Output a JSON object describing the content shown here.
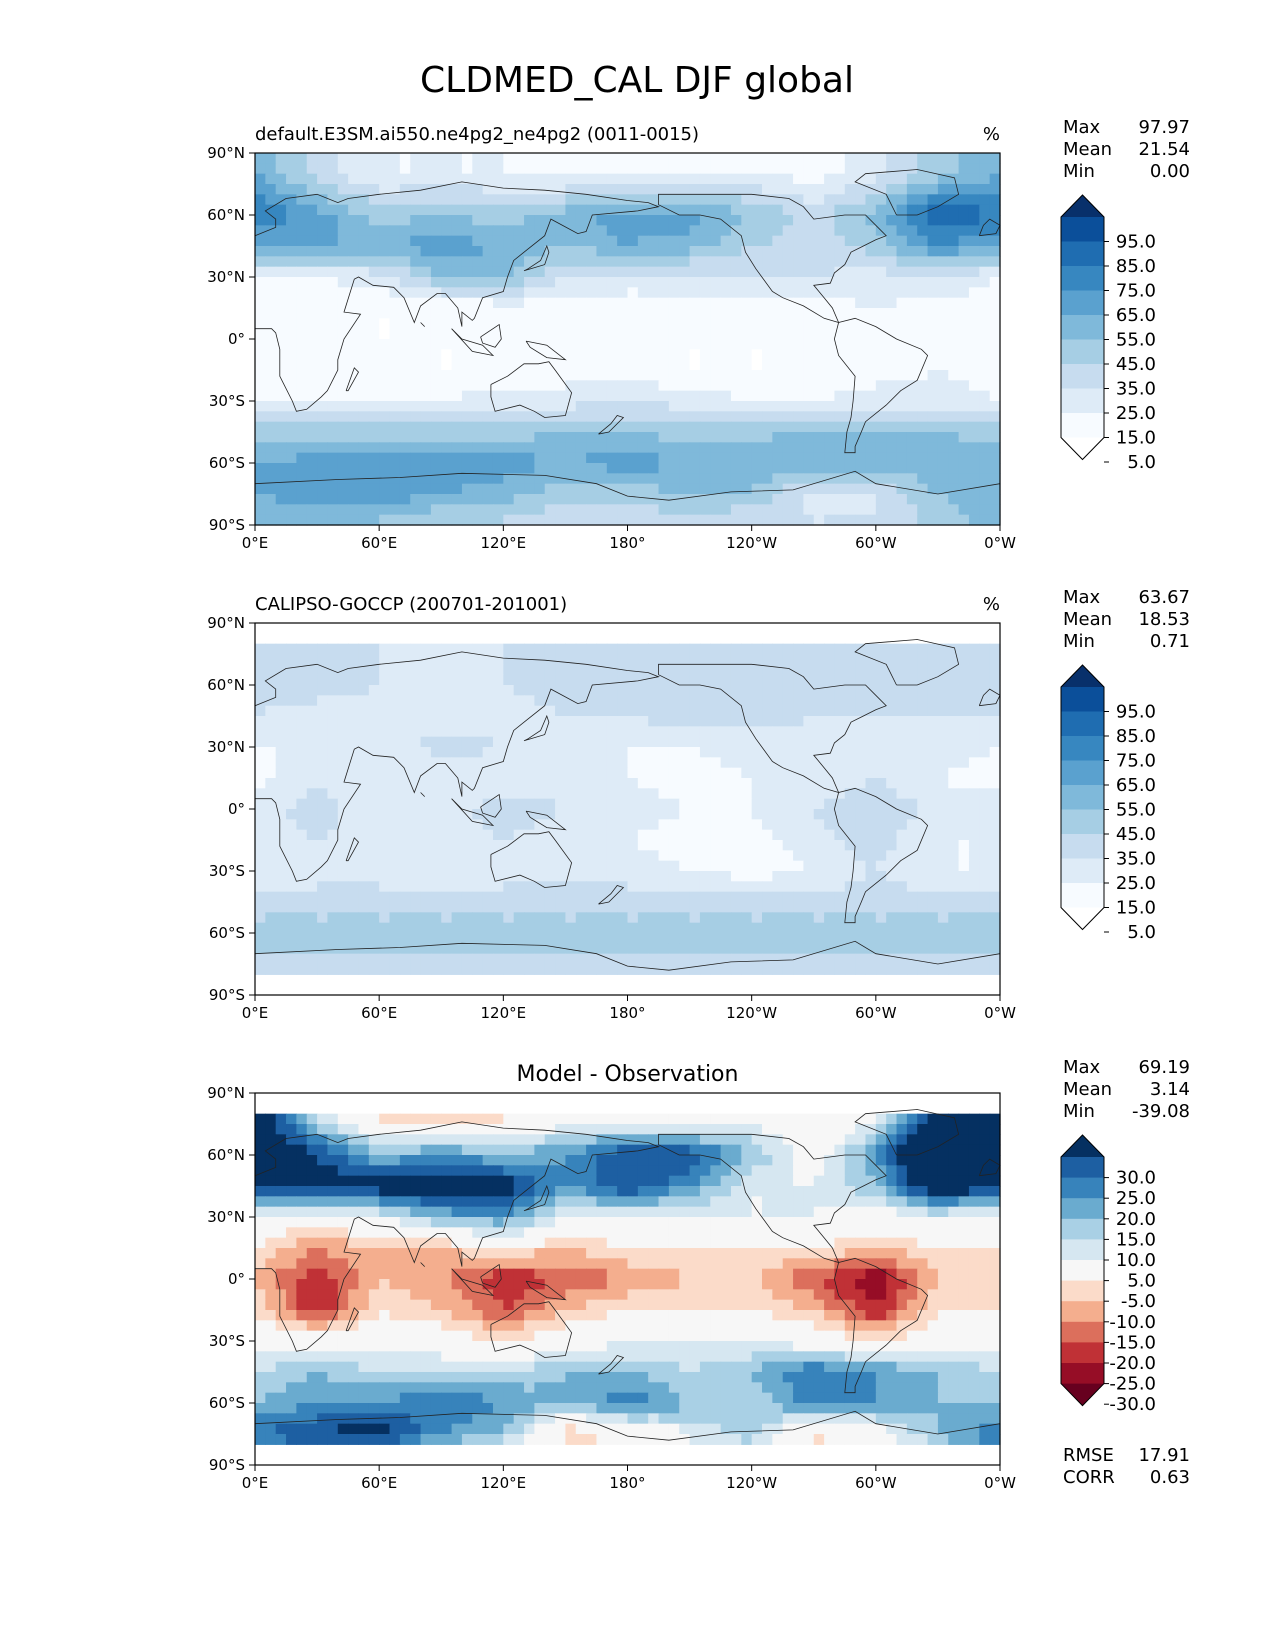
{
  "figure": {
    "title": "CLDMED_CAL DJF global"
  },
  "chart_data": [
    {
      "type": "heatmap",
      "title_left": "default.E3SM.ai550.ne4pg2_ne4pg2 (0011-0015)",
      "title_center": "",
      "units": "%",
      "stats": [
        {
          "label": "Max",
          "value": "97.97"
        },
        {
          "label": "Mean",
          "value": "21.54"
        },
        {
          "label": "Min",
          "value": "0.00"
        }
      ],
      "colorbar": {
        "ticks": [
          "95.0",
          "85.0",
          "75.0",
          "65.0",
          "55.0",
          "45.0",
          "35.0",
          "25.0",
          "15.0",
          "5.0"
        ],
        "colors": [
          "#08306b",
          "#0b4f9a",
          "#1f6db1",
          "#3787c0",
          "#5aa1cf",
          "#7fb9da",
          "#a6cee4",
          "#c7dcef",
          "#deebf7",
          "#f7fbff",
          "#ffffff"
        ]
      },
      "xlabels": [
        "0°E",
        "60°E",
        "120°E",
        "180°",
        "120°W",
        "60°W",
        "0°W"
      ],
      "ylabels": [
        "90°N",
        "60°N",
        "30°N",
        "0°",
        "30°S",
        "60°S",
        "90°S"
      ],
      "field": {
        "lons": [
          0,
          30,
          60,
          90,
          120,
          150,
          180,
          210,
          240,
          270,
          300,
          330,
          360
        ],
        "lats": [
          80,
          60,
          45,
          30,
          15,
          0,
          -15,
          -30,
          -45,
          -60,
          -75,
          -85
        ],
        "values": [
          [
            55,
            30,
            15,
            15,
            15,
            10,
            10,
            10,
            15,
            10,
            20,
            40,
            55
          ],
          [
            75,
            60,
            40,
            45,
            40,
            50,
            60,
            60,
            45,
            30,
            50,
            85,
            75
          ],
          [
            55,
            55,
            55,
            60,
            55,
            45,
            55,
            50,
            35,
            30,
            40,
            65,
            55
          ],
          [
            15,
            15,
            20,
            45,
            45,
            25,
            20,
            20,
            25,
            25,
            20,
            25,
            15
          ],
          [
            10,
            5,
            5,
            5,
            10,
            10,
            10,
            10,
            10,
            10,
            15,
            10,
            10
          ],
          [
            10,
            10,
            5,
            5,
            5,
            5,
            5,
            5,
            5,
            5,
            10,
            10,
            10
          ],
          [
            10,
            15,
            10,
            5,
            5,
            10,
            10,
            5,
            5,
            5,
            10,
            15,
            10
          ],
          [
            15,
            15,
            15,
            15,
            20,
            20,
            25,
            20,
            15,
            15,
            20,
            20,
            15
          ],
          [
            40,
            40,
            40,
            40,
            40,
            45,
            45,
            40,
            40,
            50,
            50,
            45,
            40
          ],
          [
            55,
            60,
            60,
            65,
            60,
            55,
            60,
            55,
            50,
            55,
            50,
            55,
            55
          ],
          [
            55,
            60,
            65,
            55,
            50,
            40,
            40,
            45,
            45,
            20,
            25,
            45,
            55
          ],
          [
            50,
            50,
            45,
            40,
            35,
            30,
            30,
            35,
            30,
            25,
            25,
            40,
            50
          ]
        ]
      }
    },
    {
      "type": "heatmap",
      "title_left": "CALIPSO-GOCCP (200701-201001)",
      "title_center": "",
      "units": "%",
      "stats": [
        {
          "label": "Max",
          "value": "63.67"
        },
        {
          "label": "Mean",
          "value": "18.53"
        },
        {
          "label": "Min",
          "value": "0.71"
        }
      ],
      "colorbar": {
        "ticks": [
          "95.0",
          "85.0",
          "75.0",
          "65.0",
          "55.0",
          "45.0",
          "35.0",
          "25.0",
          "15.0",
          "5.0"
        ],
        "colors": [
          "#08306b",
          "#0b4f9a",
          "#1f6db1",
          "#3787c0",
          "#5aa1cf",
          "#7fb9da",
          "#a6cee4",
          "#c7dcef",
          "#deebf7",
          "#f7fbff",
          "#ffffff"
        ]
      },
      "xlabels": [
        "0°E",
        "60°E",
        "120°E",
        "180°",
        "120°W",
        "60°W",
        "0°W"
      ],
      "ylabels": [
        "90°N",
        "60°N",
        "30°N",
        "0°",
        "30°S",
        "60°S",
        "90°S"
      ],
      "lat_mask": [
        -82,
        82
      ],
      "field": {
        "lons": [
          0,
          30,
          60,
          90,
          120,
          150,
          180,
          210,
          240,
          270,
          300,
          330,
          360
        ],
        "lats": [
          82,
          60,
          45,
          30,
          15,
          0,
          -15,
          -30,
          -45,
          -60,
          -75,
          -82
        ],
        "values": [
          [
            25,
            25,
            25,
            20,
            25,
            25,
            25,
            25,
            25,
            25,
            25,
            25,
            25
          ],
          [
            30,
            30,
            25,
            25,
            25,
            30,
            30,
            30,
            30,
            30,
            30,
            35,
            30
          ],
          [
            25,
            20,
            20,
            20,
            20,
            25,
            25,
            30,
            30,
            25,
            25,
            25,
            25
          ],
          [
            15,
            15,
            15,
            30,
            25,
            20,
            15,
            15,
            20,
            20,
            20,
            20,
            15
          ],
          [
            10,
            25,
            15,
            15,
            15,
            20,
            15,
            10,
            15,
            15,
            25,
            15,
            10
          ],
          [
            20,
            30,
            15,
            20,
            30,
            25,
            20,
            15,
            15,
            25,
            35,
            20,
            20
          ],
          [
            15,
            25,
            20,
            15,
            25,
            20,
            15,
            10,
            10,
            20,
            30,
            15,
            15
          ],
          [
            15,
            20,
            20,
            15,
            20,
            20,
            20,
            15,
            10,
            15,
            25,
            15,
            15
          ],
          [
            30,
            30,
            30,
            30,
            30,
            30,
            30,
            30,
            30,
            30,
            30,
            30,
            30
          ],
          [
            40,
            40,
            40,
            40,
            40,
            40,
            40,
            40,
            40,
            40,
            40,
            40,
            40
          ],
          [
            30,
            30,
            30,
            30,
            30,
            30,
            30,
            30,
            30,
            30,
            30,
            30,
            30
          ],
          [
            30,
            30,
            30,
            30,
            30,
            30,
            30,
            30,
            30,
            30,
            30,
            30,
            30
          ]
        ]
      }
    },
    {
      "type": "heatmap",
      "title_left": "",
      "title_center": "Model - Observation",
      "units": "",
      "stats": [
        {
          "label": "Max",
          "value": "69.19"
        },
        {
          "label": "Mean",
          "value": "3.14"
        },
        {
          "label": "Min",
          "value": "-39.08"
        }
      ],
      "extra_stats": [
        {
          "label": "RMSE",
          "value": "17.91"
        },
        {
          "label": "CORR",
          "value": "0.63"
        }
      ],
      "colorbar": {
        "ticks": [
          "30.0",
          "25.0",
          "20.0",
          "15.0",
          "10.0",
          "5.0",
          "-5.0",
          "-10.0",
          "-15.0",
          "-20.0",
          "-25.0",
          "-30.0"
        ],
        "colors": [
          "#053061",
          "#1d5fa2",
          "#3783bb",
          "#6aabcf",
          "#a9d0e5",
          "#d6e7f1",
          "#f7f7f7",
          "#fbdbc9",
          "#f4ae8e",
          "#dc6f5c",
          "#c03136",
          "#960d26",
          "#67001f"
        ],
        "boundaries": [
          30,
          25,
          20,
          15,
          10,
          5,
          -5,
          -10,
          -15,
          -20,
          -25,
          -30
        ]
      },
      "xlabels": [
        "0°E",
        "60°E",
        "120°E",
        "180°",
        "120°W",
        "60°W",
        "0°W"
      ],
      "ylabels": [
        "90°N",
        "60°N",
        "30°N",
        "0°",
        "30°S",
        "60°S",
        "90°S"
      ],
      "lat_mask": [
        -82,
        82
      ],
      "field": {
        "lons": [
          0,
          30,
          60,
          90,
          120,
          150,
          180,
          210,
          240,
          270,
          300,
          330,
          360
        ],
        "lats": [
          82,
          60,
          45,
          30,
          15,
          0,
          -15,
          -30,
          -45,
          -60,
          -75,
          -82
        ],
        "values": [
          [
            35,
            5,
            -10,
            -15,
            -10,
            -5,
            -5,
            -10,
            0,
            -5,
            0,
            35,
            35
          ],
          [
            45,
            30,
            15,
            20,
            15,
            20,
            30,
            30,
            15,
            0,
            20,
            50,
            45
          ],
          [
            30,
            35,
            35,
            40,
            35,
            20,
            30,
            20,
            5,
            5,
            15,
            40,
            30
          ],
          [
            0,
            0,
            5,
            15,
            20,
            5,
            5,
            5,
            5,
            5,
            0,
            5,
            0
          ],
          [
            -5,
            -15,
            -10,
            -10,
            -5,
            -10,
            -5,
            -5,
            -5,
            -5,
            -10,
            -5,
            -5
          ],
          [
            -10,
            -25,
            -10,
            -15,
            -25,
            -20,
            -15,
            -10,
            -10,
            -20,
            -30,
            -10,
            -10
          ],
          [
            -5,
            -25,
            -5,
            -10,
            -20,
            -10,
            -5,
            -5,
            -5,
            -10,
            -25,
            -5,
            -5
          ],
          [
            0,
            0,
            0,
            0,
            -5,
            0,
            5,
            5,
            5,
            0,
            -5,
            0,
            0
          ],
          [
            10,
            15,
            10,
            10,
            10,
            15,
            15,
            10,
            15,
            25,
            20,
            15,
            10
          ],
          [
            15,
            20,
            20,
            25,
            20,
            15,
            25,
            15,
            10,
            25,
            20,
            15,
            15
          ],
          [
            25,
            30,
            35,
            20,
            15,
            -10,
            -5,
            5,
            15,
            -10,
            0,
            15,
            25
          ],
          [
            20,
            20,
            15,
            10,
            5,
            0,
            0,
            5,
            5,
            0,
            0,
            10,
            20
          ]
        ]
      }
    }
  ]
}
